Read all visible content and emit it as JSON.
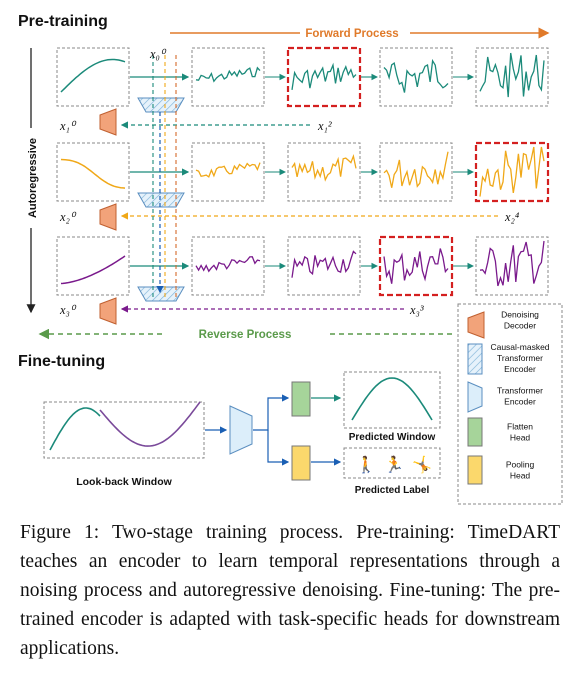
{
  "sections": {
    "pretraining": "Pre-training",
    "finetuning": "Fine-tuning"
  },
  "labels": {
    "forward": "Forward Process",
    "reverse": "Reverse Process",
    "autoregressive": "Autoregressive",
    "x00": "x₀⁰",
    "x10": "x₁⁰",
    "x12": "x₁²",
    "x20": "x₂⁰",
    "x24": "x₂⁴",
    "x30": "x₃⁰",
    "x33": "x₃³",
    "lookback": "Look-back Window",
    "predicted_window": "Predicted Window",
    "predicted_label": "Predicted Label"
  },
  "legend": [
    {
      "key": "decoder",
      "label": "Denoising Decoder"
    },
    {
      "key": "causal",
      "label": "Causal-masked Transformer Encoder"
    },
    {
      "key": "encoder",
      "label": "Transformer Encoder"
    },
    {
      "key": "flatten",
      "label": "Flatten Head"
    },
    {
      "key": "pooling",
      "label": "Pooling Head"
    }
  ],
  "caption": "Figure 1:  Two-stage training process.  Pre-training: TimeDART teaches an encoder to learn temporal representations through a noising process and autoregressive denoising. Fine-tuning: The pre-trained encoder is adapted with task-specific heads for downstream applications.",
  "colors": {
    "teal": "#1b8a7a",
    "orange": "#f0a818",
    "purple": "#7a1a8c",
    "red_dash": "#d42020",
    "decoder_fill": "#f2a37a",
    "encoder_fill": "#dceefa",
    "flatten_fill": "#a6d49a",
    "pooling_fill": "#fbd86c",
    "forward_arrow": "#e07a2a",
    "reverse_arrow": "#5a9a4a"
  }
}
